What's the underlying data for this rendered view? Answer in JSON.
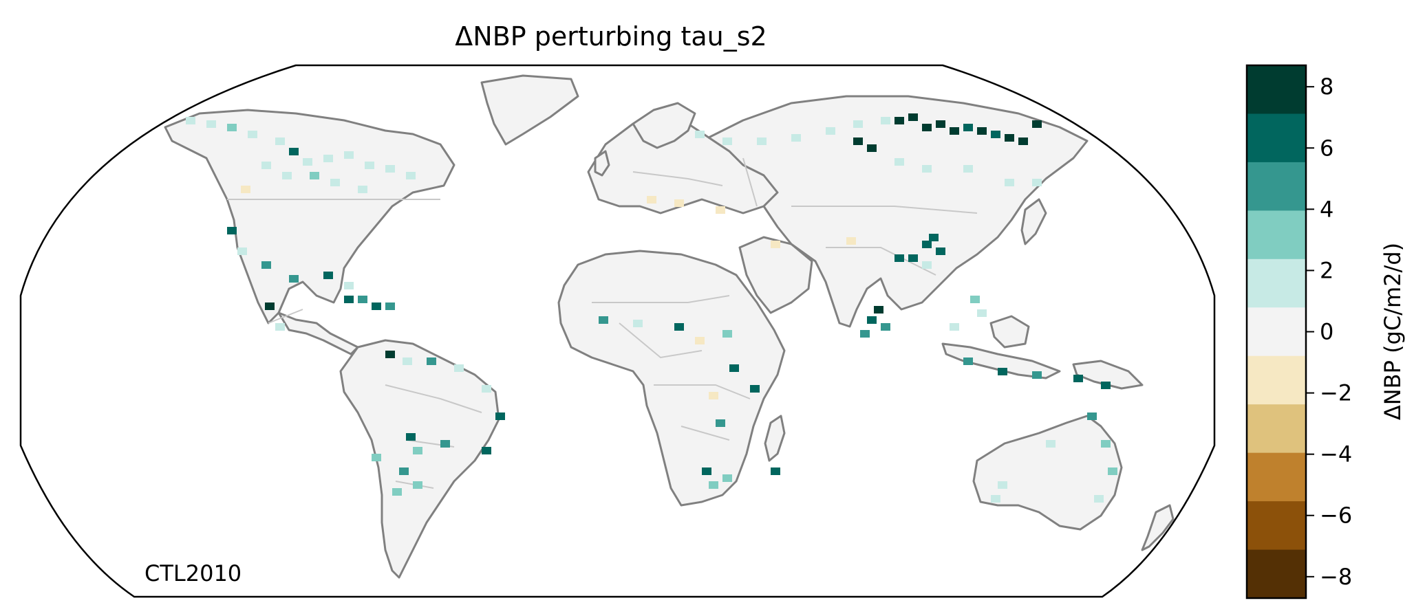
{
  "title": "ΔNBP perturbing tau_s2",
  "label": "CTL2010",
  "colorbar": {
    "label": "ΔNBP (gC/m2/d)",
    "ticks": [
      "8",
      "6",
      "4",
      "2",
      "0",
      "−2",
      "−4",
      "−6",
      "−8"
    ],
    "bins": [
      {
        "range": "6 to 8",
        "color": "#003c30"
      },
      {
        "range": "4 to 6",
        "color": "#01665e"
      },
      {
        "range": "2 to 4",
        "color": "#35978f"
      },
      {
        "range": "0.8 to 2",
        "color": "#80cdc1"
      },
      {
        "range": "0.2 to 0.8",
        "color": "#c7eae5"
      },
      {
        "range": "-0.2 to 0.2",
        "color": "#f3f3f3"
      },
      {
        "range": "-0.8 to -0.2",
        "color": "#f6e8c3"
      },
      {
        "range": "-2 to -0.8",
        "color": "#dfc27d"
      },
      {
        "range": "-4 to -2",
        "color": "#bf812d"
      },
      {
        "range": "-6 to -4",
        "color": "#8c510a"
      },
      {
        "range": "-8 to -6",
        "color": "#543005"
      }
    ]
  },
  "colors": {
    "coastline": "#808080",
    "borders": "#c8c8c8",
    "land": "#f3f3f3"
  }
}
